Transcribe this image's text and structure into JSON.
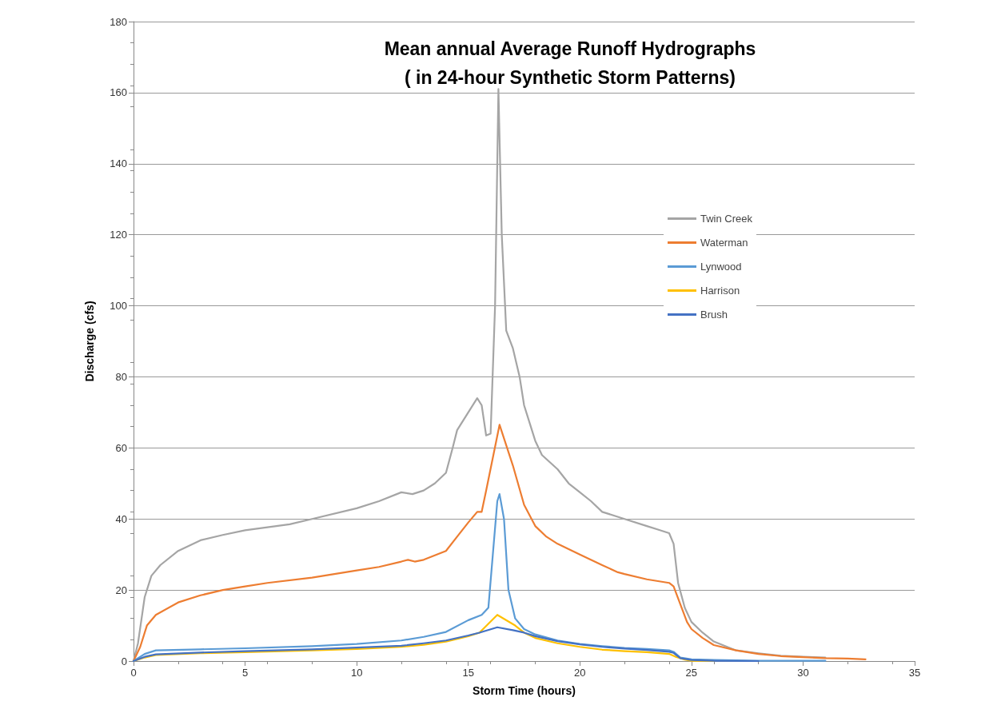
{
  "chart_data": {
    "type": "line",
    "title": "Mean annual Average Runoff Hydrographs\n( in 24-hour Synthetic Storm Patterns)",
    "xlabel": "Storm Time (hours)",
    "ylabel": "Discharge (cfs)",
    "xlim": [
      0,
      35
    ],
    "xticks": [
      0,
      5,
      10,
      15,
      20,
      25,
      30,
      35
    ],
    "ylim": [
      0,
      180
    ],
    "yticks": [
      0,
      20,
      40,
      60,
      80,
      100,
      120,
      140,
      160,
      180
    ],
    "grid": "y",
    "legend": "right",
    "marker": "none",
    "line_style": "solid",
    "series": [
      {
        "name": "Twin Creek",
        "color": "#a5a5a5",
        "x": [
          0,
          0.2,
          0.5,
          0.8,
          1.2,
          2,
          3,
          4,
          5,
          7,
          8,
          10,
          11,
          12,
          12.5,
          13,
          13.5,
          14,
          14.3,
          14.5,
          15,
          15.4,
          15.6,
          15.8,
          16,
          16.2,
          16.35,
          16.5,
          16.7,
          17,
          17.3,
          17.5,
          18,
          18.3,
          19,
          19.5,
          20,
          20.5,
          21,
          22,
          23,
          23.5,
          24,
          24.2,
          24.4,
          24.7,
          25,
          25.5,
          26,
          27,
          28,
          29,
          30,
          31
        ],
        "values": [
          0,
          5,
          18,
          24,
          27,
          31,
          34,
          35.5,
          36.8,
          38.5,
          40,
          43,
          45,
          47.5,
          47,
          48,
          50,
          53,
          60,
          65,
          70,
          74,
          72,
          63.5,
          64,
          100,
          161,
          120,
          93,
          88,
          80,
          72,
          62,
          58,
          54,
          50,
          47.5,
          45,
          42,
          40,
          38,
          37,
          36,
          33,
          22,
          15,
          11,
          8,
          5.5,
          3,
          2.2,
          1.5,
          1.2,
          1
        ]
      },
      {
        "name": "Waterman",
        "color": "#ed7d31",
        "x": [
          0,
          0.3,
          0.6,
          1,
          2,
          3,
          4,
          5,
          6,
          8,
          10,
          11,
          12,
          12.3,
          12.6,
          13,
          14,
          14.5,
          15,
          15.4,
          15.6,
          15.8,
          16.4,
          17,
          17.5,
          18,
          18.5,
          19,
          20,
          21,
          21.7,
          22,
          23,
          24,
          24.2,
          24.5,
          24.8,
          25,
          25.5,
          26,
          27,
          28,
          29,
          30,
          31,
          32,
          32.8
        ],
        "values": [
          0,
          4,
          10,
          13,
          16.5,
          18.5,
          20,
          21,
          22,
          23.5,
          25.5,
          26.5,
          28,
          28.5,
          28,
          28.5,
          31,
          35,
          39,
          42,
          42,
          48,
          66.5,
          55,
          44,
          38,
          35,
          33,
          30,
          27,
          25,
          24.5,
          23,
          22,
          21,
          16,
          11,
          9,
          6.5,
          4.5,
          3,
          2,
          1.4,
          1.1,
          0.8,
          0.7,
          0.5
        ]
      },
      {
        "name": "Lynwood",
        "color": "#5b9bd5",
        "x": [
          0,
          0.5,
          1,
          3,
          5,
          8,
          10,
          12,
          13,
          14,
          15,
          15.6,
          15.9,
          16.1,
          16.3,
          16.4,
          16.6,
          16.8,
          17.1,
          17.5,
          18,
          19,
          20,
          21,
          22,
          23,
          24,
          24.2,
          24.5,
          25,
          26,
          27,
          28,
          30,
          31
        ],
        "values": [
          0,
          2,
          3,
          3.3,
          3.6,
          4.2,
          4.8,
          5.8,
          6.8,
          8.2,
          11.5,
          13,
          15,
          30,
          45,
          47,
          40,
          20,
          12,
          9,
          7.5,
          5.8,
          4.8,
          4.2,
          3.7,
          3.4,
          3,
          2.6,
          1,
          0.5,
          0.3,
          0.2,
          0.1,
          0.1,
          0.1
        ]
      },
      {
        "name": "Harrison",
        "color": "#ffc000",
        "x": [
          0,
          0.5,
          1,
          3,
          5,
          8,
          10,
          12,
          13,
          14,
          15,
          15.5,
          16.3,
          17.1,
          17.5,
          18,
          19,
          20,
          21,
          22,
          23,
          24,
          24.3,
          24.7,
          25,
          26
        ],
        "values": [
          0,
          1,
          1.7,
          2.2,
          2.5,
          3,
          3.4,
          4,
          4.6,
          5.5,
          7,
          8,
          13,
          10,
          8,
          6.5,
          5,
          4,
          3.2,
          2.8,
          2.5,
          2,
          1.2,
          0.4,
          0.1,
          0
        ]
      },
      {
        "name": "Brush",
        "color": "#4472c4",
        "x": [
          0,
          0.5,
          1,
          3,
          5,
          8,
          10,
          12,
          13,
          14,
          15,
          15.5,
          16.3,
          17,
          17.5,
          18,
          19,
          20,
          21,
          22,
          23,
          24,
          24.2,
          24.5,
          25,
          26,
          28
        ],
        "values": [
          0,
          1.2,
          1.9,
          2.4,
          2.8,
          3.3,
          3.8,
          4.3,
          5,
          5.8,
          7.2,
          8,
          9.5,
          8.7,
          8,
          7,
          5.6,
          4.7,
          4,
          3.5,
          3.1,
          2.6,
          2.3,
          0.8,
          0.3,
          0.1,
          0
        ]
      }
    ]
  }
}
